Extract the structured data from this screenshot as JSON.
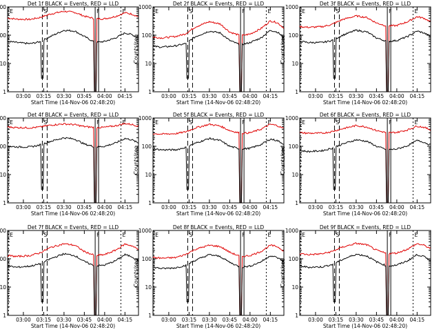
{
  "chart_data": [
    {
      "type": "line",
      "title": "Det 1f BLACK = Events, RED = LLD",
      "xlabel": "Start Time (14-Nov-06 02:48:20)",
      "ylabel": "Counts/sec",
      "yscale": "log",
      "ylim": [
        1,
        1000
      ],
      "x_ticks": [
        "03:00",
        "03:15",
        "03:30",
        "03:45",
        "04:00",
        "04:15"
      ],
      "y_ticks": [
        "1",
        "10",
        "100",
        "1000"
      ],
      "markers": [
        {
          "label": "E",
          "at": "02:49"
        },
        {
          "label": "S",
          "at": "03:14"
        },
        {
          "label": "F",
          "at": "03:53"
        },
        {
          "label": "E",
          "at": "04:12"
        }
      ],
      "series": [
        {
          "name": "LLD",
          "color": "#e00000",
          "x": [
            "02:49",
            "02:55",
            "03:05",
            "03:12",
            "03:20",
            "03:30",
            "03:38",
            "03:45",
            "03:53",
            "04:00",
            "04:08",
            "04:15",
            "04:20",
            "04:25"
          ],
          "values": [
            400,
            370,
            360,
            420,
            560,
            700,
            640,
            470,
            380,
            380,
            460,
            620,
            560,
            450
          ]
        },
        {
          "name": "Events",
          "color": "#000000",
          "x": [
            "02:49",
            "02:55",
            "03:05",
            "03:12",
            "03:20",
            "03:30",
            "03:38",
            "03:45",
            "03:53",
            "04:00",
            "04:08",
            "04:15",
            "04:20",
            "04:25"
          ],
          "values": [
            60,
            55,
            50,
            58,
            90,
            150,
            140,
            90,
            55,
            60,
            80,
            120,
            105,
            80
          ]
        }
      ]
    },
    {
      "type": "line",
      "title": "Det 2f BLACK = Events, RED = LLD",
      "xlabel": "Start Time (14-Nov-06 02:48:20)",
      "ylabel": "Counts/sec",
      "yscale": "log",
      "ylim": [
        1,
        1000
      ],
      "x_ticks": [
        "03:00",
        "03:15",
        "03:30",
        "03:45",
        "04:00",
        "04:15"
      ],
      "y_ticks": [
        "1",
        "10",
        "100",
        "1000"
      ],
      "markers": [
        {
          "label": "E",
          "at": "02:49"
        },
        {
          "label": "S",
          "at": "03:14"
        },
        {
          "label": "F",
          "at": "03:53"
        },
        {
          "label": "E",
          "at": "04:12"
        }
      ],
      "series": [
        {
          "name": "LLD",
          "color": "#e00000",
          "x": [
            "02:49",
            "02:55",
            "03:05",
            "03:12",
            "03:20",
            "03:30",
            "03:38",
            "03:45",
            "03:53",
            "04:00",
            "04:08",
            "04:15",
            "04:20",
            "04:25"
          ],
          "values": [
            85,
            80,
            90,
            110,
            200,
            300,
            250,
            130,
            95,
            110,
            170,
            320,
            280,
            180
          ]
        },
        {
          "name": "Events",
          "color": "#000000",
          "x": [
            "02:49",
            "02:55",
            "03:05",
            "03:12",
            "03:20",
            "03:30",
            "03:38",
            "03:45",
            "03:53",
            "04:00",
            "04:08",
            "04:15",
            "04:20",
            "04:25"
          ],
          "values": [
            40,
            38,
            42,
            50,
            90,
            140,
            120,
            65,
            45,
            55,
            80,
            150,
            130,
            85
          ]
        }
      ]
    },
    {
      "type": "line",
      "title": "Det 3f BLACK = Events, RED = LLD",
      "xlabel": "Start Time (14-Nov-06 02:48:20)",
      "ylabel": "Counts/sec",
      "yscale": "log",
      "ylim": [
        1,
        1000
      ],
      "x_ticks": [
        "03:00",
        "03:15",
        "03:30",
        "03:45",
        "04:00",
        "04:15"
      ],
      "y_ticks": [
        "1",
        "10",
        "100",
        "1000"
      ],
      "markers": [
        {
          "label": "E",
          "at": "02:49"
        },
        {
          "label": "S",
          "at": "03:14"
        },
        {
          "label": "F",
          "at": "03:53"
        },
        {
          "label": "E",
          "at": "04:12"
        }
      ],
      "series": [
        {
          "name": "LLD",
          "color": "#e00000",
          "x": [
            "02:49",
            "02:55",
            "03:05",
            "03:12",
            "03:20",
            "03:30",
            "03:38",
            "03:45",
            "03:53",
            "04:00",
            "04:08",
            "04:15",
            "04:20",
            "04:25"
          ],
          "values": [
            200,
            190,
            200,
            240,
            360,
            480,
            420,
            270,
            210,
            220,
            300,
            450,
            400,
            300
          ]
        },
        {
          "name": "Events",
          "color": "#000000",
          "x": [
            "02:49",
            "02:55",
            "03:05",
            "03:12",
            "03:20",
            "03:30",
            "03:38",
            "03:45",
            "03:53",
            "04:00",
            "04:08",
            "04:15",
            "04:20",
            "04:25"
          ],
          "values": [
            60,
            55,
            55,
            65,
            100,
            150,
            130,
            80,
            60,
            65,
            90,
            140,
            120,
            90
          ]
        }
      ]
    },
    {
      "type": "line",
      "title": "Det 4f BLACK = Events, RED = LLD",
      "xlabel": "Start Time (14-Nov-06 02:48:20)",
      "ylabel": "Counts/sec",
      "yscale": "log",
      "ylim": [
        1,
        1000
      ],
      "x_ticks": [
        "03:00",
        "03:15",
        "03:30",
        "03:45",
        "04:00",
        "04:15"
      ],
      "y_ticks": [
        "1",
        "10",
        "100",
        "1000"
      ],
      "markers": [
        {
          "label": "E",
          "at": "02:49"
        },
        {
          "label": "S",
          "at": "03:14"
        },
        {
          "label": "F",
          "at": "03:53"
        },
        {
          "label": "E",
          "at": "04:12"
        }
      ],
      "series": [
        {
          "name": "LLD",
          "color": "#e00000",
          "x": [
            "02:49",
            "02:55",
            "03:05",
            "03:12",
            "03:20",
            "03:30",
            "03:38",
            "03:45",
            "03:53",
            "04:00",
            "04:08",
            "04:15",
            "04:20",
            "04:25"
          ],
          "values": [
            480,
            460,
            450,
            480,
            560,
            620,
            580,
            500,
            460,
            470,
            530,
            640,
            590,
            520
          ]
        },
        {
          "name": "Events",
          "color": "#000000",
          "x": [
            "02:49",
            "02:55",
            "03:05",
            "03:12",
            "03:20",
            "03:30",
            "03:38",
            "03:45",
            "03:53",
            "04:00",
            "04:08",
            "04:15",
            "04:20",
            "04:25"
          ],
          "values": [
            100,
            95,
            95,
            110,
            150,
            200,
            180,
            120,
            95,
            100,
            130,
            190,
            170,
            130
          ]
        }
      ]
    },
    {
      "type": "line",
      "title": "Det 5f BLACK = Events, RED = LLD",
      "xlabel": "Start Time (14-Nov-06 02:48:20)",
      "ylabel": "Counts/sec",
      "yscale": "log",
      "ylim": [
        1,
        1000
      ],
      "x_ticks": [
        "03:00",
        "03:15",
        "03:30",
        "03:45",
        "04:00",
        "04:15"
      ],
      "y_ticks": [
        "1",
        "10",
        "100",
        "1000"
      ],
      "markers": [
        {
          "label": "E",
          "at": "02:49"
        },
        {
          "label": "S",
          "at": "03:14"
        },
        {
          "label": "F",
          "at": "03:53"
        },
        {
          "label": "E",
          "at": "04:12"
        }
      ],
      "series": [
        {
          "name": "LLD",
          "color": "#e00000",
          "x": [
            "02:49",
            "02:55",
            "03:05",
            "03:12",
            "03:20",
            "03:30",
            "03:38",
            "03:45",
            "03:53",
            "04:00",
            "04:08",
            "04:15",
            "04:20",
            "04:25"
          ],
          "values": [
            280,
            270,
            280,
            320,
            450,
            600,
            520,
            360,
            290,
            300,
            400,
            600,
            540,
            420
          ]
        },
        {
          "name": "Events",
          "color": "#000000",
          "x": [
            "02:49",
            "02:55",
            "03:05",
            "03:12",
            "03:20",
            "03:30",
            "03:38",
            "03:45",
            "03:53",
            "04:00",
            "04:08",
            "04:15",
            "04:20",
            "04:25"
          ],
          "values": [
            80,
            75,
            75,
            90,
            130,
            190,
            160,
            100,
            80,
            85,
            115,
            180,
            160,
            120
          ]
        }
      ]
    },
    {
      "type": "line",
      "title": "Det 6f BLACK = Events, RED = LLD",
      "xlabel": "Start Time (14-Nov-06 02:48:20)",
      "ylabel": "Counts/sec",
      "yscale": "log",
      "ylim": [
        1,
        1000
      ],
      "x_ticks": [
        "03:00",
        "03:15",
        "03:30",
        "03:45",
        "04:00",
        "04:15"
      ],
      "y_ticks": [
        "1",
        "10",
        "100",
        "1000"
      ],
      "markers": [
        {
          "label": "E",
          "at": "02:49"
        },
        {
          "label": "S",
          "at": "03:14"
        },
        {
          "label": "F",
          "at": "03:53"
        },
        {
          "label": "E",
          "at": "04:12"
        }
      ],
      "series": [
        {
          "name": "LLD",
          "color": "#e00000",
          "x": [
            "02:49",
            "02:55",
            "03:05",
            "03:12",
            "03:20",
            "03:30",
            "03:38",
            "03:45",
            "03:53",
            "04:00",
            "04:08",
            "04:15",
            "04:20",
            "04:25"
          ],
          "values": [
            300,
            290,
            290,
            330,
            420,
            540,
            480,
            360,
            300,
            310,
            380,
            520,
            470,
            380
          ]
        },
        {
          "name": "Events",
          "color": "#000000",
          "x": [
            "02:49",
            "02:55",
            "03:05",
            "03:12",
            "03:20",
            "03:30",
            "03:38",
            "03:45",
            "03:53",
            "04:00",
            "04:08",
            "04:15",
            "04:20",
            "04:25"
          ],
          "values": [
            70,
            65,
            70,
            85,
            120,
            170,
            150,
            100,
            75,
            80,
            105,
            160,
            140,
            110
          ]
        }
      ]
    },
    {
      "type": "line",
      "title": "Det 7f BLACK = Events, RED = LLD",
      "xlabel": "Start Time (14-Nov-06 02:48:20)",
      "ylabel": "Counts/sec",
      "yscale": "log",
      "ylim": [
        1,
        1000
      ],
      "x_ticks": [
        "03:00",
        "03:15",
        "03:30",
        "03:45",
        "04:00",
        "04:15"
      ],
      "y_ticks": [
        "1",
        "10",
        "100",
        "1000"
      ],
      "markers": [
        {
          "label": "E",
          "at": "02:49"
        },
        {
          "label": "S",
          "at": "03:14"
        },
        {
          "label": "F",
          "at": "03:53"
        },
        {
          "label": "E",
          "at": "04:12"
        }
      ],
      "series": [
        {
          "name": "LLD",
          "color": "#e00000",
          "x": [
            "02:49",
            "02:55",
            "03:05",
            "03:12",
            "03:20",
            "03:30",
            "03:38",
            "03:45",
            "03:53",
            "04:00",
            "04:08",
            "04:15",
            "04:20",
            "04:25"
          ],
          "values": [
            130,
            120,
            130,
            160,
            250,
            340,
            300,
            180,
            130,
            140,
            200,
            330,
            290,
            210
          ]
        },
        {
          "name": "Events",
          "color": "#000000",
          "x": [
            "02:49",
            "02:55",
            "03:05",
            "03:12",
            "03:20",
            "03:30",
            "03:38",
            "03:45",
            "03:53",
            "04:00",
            "04:08",
            "04:15",
            "04:20",
            "04:25"
          ],
          "values": [
            55,
            50,
            55,
            65,
            100,
            150,
            130,
            80,
            55,
            60,
            85,
            140,
            120,
            85
          ]
        }
      ]
    },
    {
      "type": "line",
      "title": "Det 8f BLACK = Events, RED = LLD",
      "xlabel": "Start Time (14-Nov-06 02:48:20)",
      "ylabel": "Counts/sec",
      "yscale": "log",
      "ylim": [
        1,
        1000
      ],
      "x_ticks": [
        "03:00",
        "03:15",
        "03:30",
        "03:45",
        "04:00",
        "04:15"
      ],
      "y_ticks": [
        "1",
        "10",
        "100",
        "1000"
      ],
      "markers": [
        {
          "label": "E",
          "at": "02:49"
        },
        {
          "label": "S",
          "at": "03:14"
        },
        {
          "label": "F",
          "at": "03:53"
        },
        {
          "label": "E",
          "at": "04:12"
        }
      ],
      "series": [
        {
          "name": "LLD",
          "color": "#e00000",
          "x": [
            "02:49",
            "02:55",
            "03:05",
            "03:12",
            "03:20",
            "03:30",
            "03:38",
            "03:45",
            "03:53",
            "04:00",
            "04:08",
            "04:15",
            "04:20",
            "04:25"
          ],
          "values": [
            110,
            105,
            110,
            140,
            220,
            300,
            270,
            170,
            120,
            130,
            180,
            300,
            270,
            190
          ]
        },
        {
          "name": "Events",
          "color": "#000000",
          "x": [
            "02:49",
            "02:55",
            "03:05",
            "03:12",
            "03:20",
            "03:30",
            "03:38",
            "03:45",
            "03:53",
            "04:00",
            "04:08",
            "04:15",
            "04:20",
            "04:25"
          ],
          "values": [
            50,
            45,
            48,
            58,
            90,
            140,
            120,
            75,
            50,
            55,
            78,
            130,
            110,
            80
          ]
        }
      ]
    },
    {
      "type": "line",
      "title": "Det 9f BLACK = Events, RED = LLD",
      "xlabel": "Start Time (14-Nov-06 02:48:20)",
      "ylabel": "Counts/sec",
      "yscale": "log",
      "ylim": [
        1,
        1000
      ],
      "x_ticks": [
        "03:00",
        "03:15",
        "03:30",
        "03:45",
        "04:00",
        "04:15"
      ],
      "y_ticks": [
        "1",
        "10",
        "100",
        "1000"
      ],
      "markers": [
        {
          "label": "E",
          "at": "02:49"
        },
        {
          "label": "S",
          "at": "03:14"
        },
        {
          "label": "F",
          "at": "03:53"
        },
        {
          "label": "E",
          "at": "04:12"
        }
      ],
      "series": [
        {
          "name": "LLD",
          "color": "#e00000",
          "x": [
            "02:49",
            "02:55",
            "03:05",
            "03:12",
            "03:20",
            "03:30",
            "03:38",
            "03:45",
            "03:53",
            "04:00",
            "04:08",
            "04:15",
            "04:20",
            "04:25"
          ],
          "values": [
            150,
            140,
            150,
            180,
            260,
            350,
            310,
            200,
            150,
            160,
            220,
            340,
            300,
            230
          ]
        },
        {
          "name": "Events",
          "color": "#000000",
          "x": [
            "02:49",
            "02:55",
            "03:05",
            "03:12",
            "03:20",
            "03:30",
            "03:38",
            "03:45",
            "03:53",
            "04:00",
            "04:08",
            "04:15",
            "04:20",
            "04:25"
          ],
          "values": [
            55,
            50,
            52,
            62,
            95,
            145,
            125,
            78,
            55,
            60,
            85,
            140,
            120,
            85
          ]
        }
      ]
    }
  ]
}
